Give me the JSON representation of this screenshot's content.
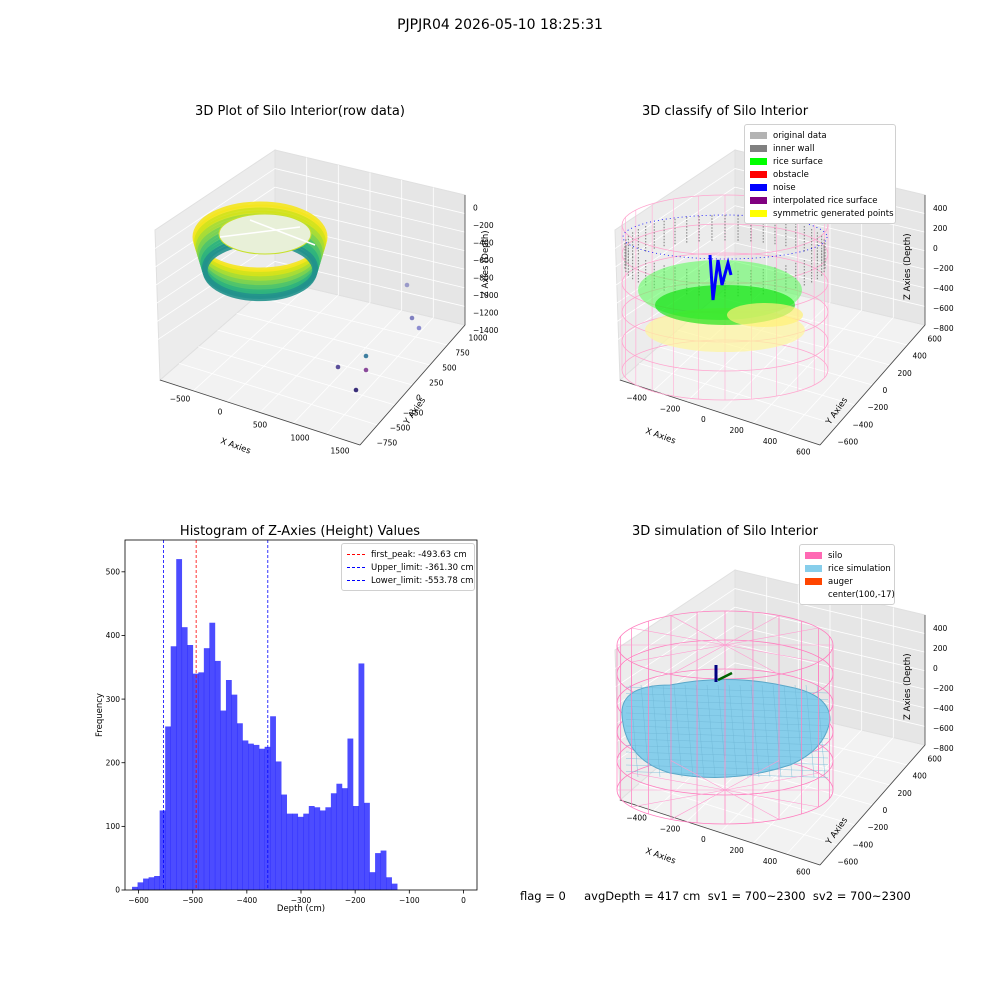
{
  "suptitle": "PJPJR04 2026-05-10 18:25:31",
  "panels": {
    "raw": {
      "title": "3D Plot of Silo Interior(row data)",
      "xlabel": "X Axies",
      "ylabel": "Y Axies",
      "zlabel": "Z Axies (Depth)",
      "xticks": [
        "−500",
        "0",
        "500",
        "1000",
        "1500"
      ],
      "yticks": [
        "−750",
        "−500",
        "−250",
        "0",
        "250",
        "500",
        "750",
        "1000"
      ],
      "zticks": [
        "0",
        "−200",
        "−400",
        "−600",
        "−800",
        "−1000",
        "−1200",
        "−1400"
      ]
    },
    "classify": {
      "title": "3D classify of Silo Interior",
      "xlabel": "X Axies",
      "ylabel": "Y Axies",
      "zlabel": "Z Axies (Depth)",
      "xticks": [
        "−400",
        "−200",
        "0",
        "200",
        "400",
        "600"
      ],
      "yticks": [
        "−600",
        "−400",
        "−200",
        "0",
        "200",
        "400",
        "600"
      ],
      "zticks": [
        "400",
        "200",
        "0",
        "−200",
        "−400",
        "−600",
        "−800"
      ],
      "legend": [
        {
          "label": "original data",
          "color": "#b3b3b3"
        },
        {
          "label": "inner wall",
          "color": "#808080"
        },
        {
          "label": "rice surface",
          "color": "#00ff00"
        },
        {
          "label": "obstacle",
          "color": "#ff0000"
        },
        {
          "label": "noise",
          "color": "#0000ff"
        },
        {
          "label": "interpolated rice surface",
          "color": "#800080"
        },
        {
          "label": "symmetric generated points",
          "color": "#ffff00"
        }
      ]
    },
    "simulation": {
      "title": "3D simulation of Silo Interior",
      "xlabel": "X Axies",
      "ylabel": "Y Axies",
      "zlabel": "Z Axies (Depth)",
      "xticks": [
        "−400",
        "−200",
        "0",
        "200",
        "400",
        "600"
      ],
      "yticks": [
        "−600",
        "−400",
        "−200",
        "0",
        "200",
        "400",
        "600"
      ],
      "zticks": [
        "400",
        "200",
        "0",
        "−200",
        "−400",
        "−600",
        "−800"
      ],
      "legend": [
        {
          "label": "silo",
          "color": "#ff69b4"
        },
        {
          "label": "rice simulation",
          "color": "#87ceeb"
        },
        {
          "label": "auger",
          "color": "#ff4500"
        },
        {
          "label": "center(100,-17)",
          "color": ""
        }
      ]
    }
  },
  "chart_data": {
    "type": "bar",
    "title": "Histogram of Z-Axies (Height) Values",
    "xlabel": "Depth (cm)",
    "ylabel": "Frequency",
    "xlim": [
      -625,
      25
    ],
    "ylim": [
      0,
      550
    ],
    "xticks": [
      -600,
      -500,
      -400,
      -300,
      -200,
      -100,
      0
    ],
    "yticks": [
      0,
      100,
      200,
      300,
      400,
      500
    ],
    "bin_start": -612,
    "bin_width": 10.2,
    "values": [
      5,
      12,
      18,
      20,
      22,
      125,
      257,
      383,
      520,
      413,
      385,
      340,
      342,
      380,
      420,
      360,
      282,
      330,
      307,
      262,
      235,
      230,
      228,
      222,
      225,
      273,
      202,
      150,
      120,
      120,
      115,
      120,
      132,
      130,
      125,
      130,
      152,
      167,
      160,
      238,
      132,
      356,
      137,
      28,
      58,
      62,
      20,
      10
    ],
    "bar_color": "#0000ff",
    "vlines": [
      {
        "value": -493.63,
        "label": "first_peak: -493.63 cm",
        "color": "#ff0000"
      },
      {
        "value": -361.3,
        "label": "Upper_limit: -361.30 cm",
        "color": "#0000ff"
      },
      {
        "value": -553.78,
        "label": "Lower_limit: -553.78 cm",
        "color": "#0000ff"
      }
    ],
    "legend_position": "top-right"
  },
  "footer": "flag = 0     avgDepth = 417 cm  sv1 = 700~2300  sv2 = 700~2300"
}
